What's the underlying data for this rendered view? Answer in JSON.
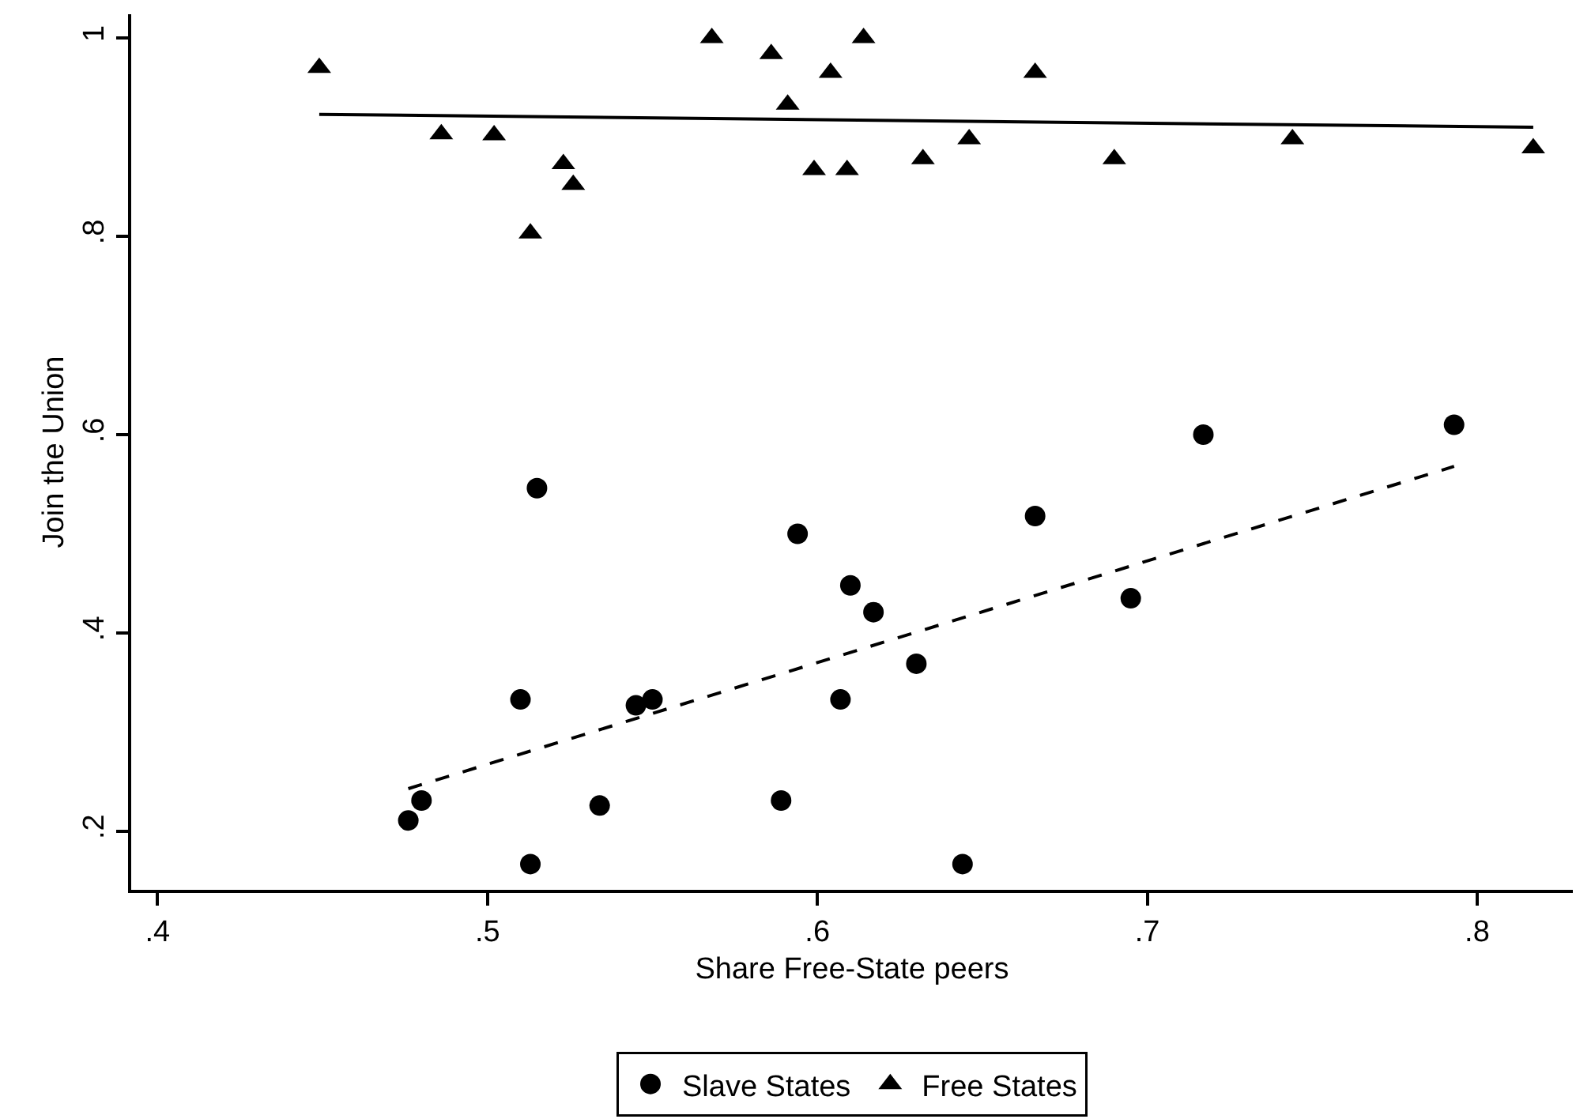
{
  "chart_data": {
    "type": "scatter",
    "xlabel": "Share Free-State peers",
    "ylabel": "Join the Union",
    "xlim": [
      0.392,
      0.829
    ],
    "ylim": [
      0.141,
      1.024
    ],
    "xticks": [
      {
        "value": 0.4,
        "label": ".4"
      },
      {
        "value": 0.5,
        "label": ".5"
      },
      {
        "value": 0.6,
        "label": ".6"
      },
      {
        "value": 0.7,
        "label": ".7"
      },
      {
        "value": 0.8,
        "label": ".8"
      }
    ],
    "yticks": [
      {
        "value": 0.2,
        "label": ".2"
      },
      {
        "value": 0.4,
        "label": ".4"
      },
      {
        "value": 0.6,
        "label": ".6"
      },
      {
        "value": 0.8,
        "label": ".8"
      },
      1
    ],
    "grid": false,
    "legend": "bottom",
    "series": [
      {
        "name": "Slave States",
        "marker": "circle",
        "color": "#000000",
        "x": [
          0.476,
          0.48,
          0.51,
          0.513,
          0.515,
          0.534,
          0.545,
          0.55,
          0.589,
          0.594,
          0.607,
          0.61,
          0.617,
          0.63,
          0.644,
          0.666,
          0.695,
          0.717,
          0.793
        ],
        "values": [
          0.211,
          0.231,
          0.333,
          0.167,
          0.546,
          0.226,
          0.327,
          0.333,
          0.231,
          0.5,
          0.333,
          0.448,
          0.421,
          0.369,
          0.167,
          0.518,
          0.435,
          0.6,
          0.61
        ]
      },
      {
        "name": "Free States",
        "marker": "triangle",
        "color": "#000000",
        "x": [
          0.449,
          0.486,
          0.502,
          0.513,
          0.523,
          0.526,
          0.568,
          0.586,
          0.591,
          0.599,
          0.604,
          0.609,
          0.614,
          0.632,
          0.646,
          0.666,
          0.69,
          0.744,
          0.817
        ],
        "values": [
          0.97,
          0.903,
          0.902,
          0.803,
          0.873,
          0.852,
          1.0,
          0.984,
          0.933,
          0.867,
          0.965,
          0.867,
          1.0,
          0.878,
          0.898,
          0.965,
          0.878,
          0.898,
          0.889
        ]
      },
      {
        "type": "line",
        "line_style": "dashed",
        "marker": "none",
        "color": "#000000",
        "x": [
          0.476,
          0.793
        ],
        "values": [
          0.243,
          0.568
        ]
      },
      {
        "type": "line",
        "line_style": "solid",
        "marker": "none",
        "color": "#000000",
        "x": [
          0.449,
          0.817
        ],
        "values": [
          0.923,
          0.91
        ]
      }
    ]
  }
}
